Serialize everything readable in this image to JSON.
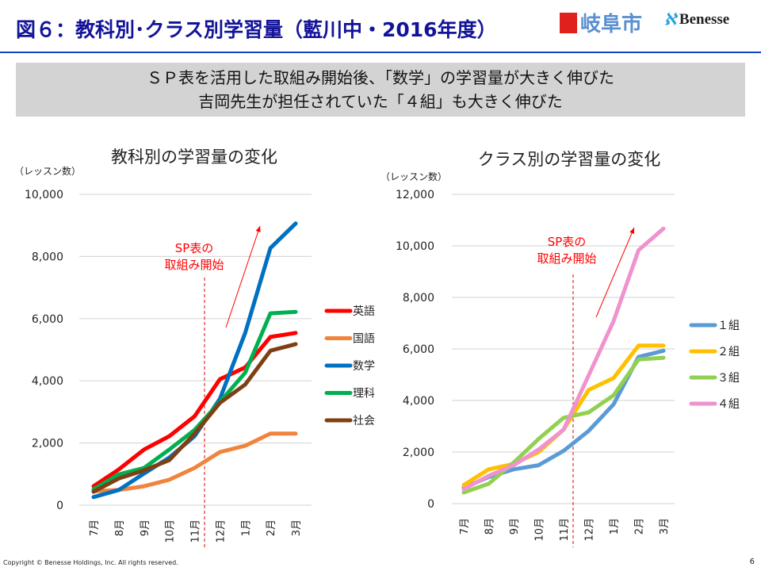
{
  "header": {
    "title": "図６：教科別･クラス別学習量（藍川中・2016年度）",
    "logo_gifu": "岐阜市",
    "logo_benesse": "Benesse"
  },
  "summary": {
    "line1": "ＳＰ表を活用した取組み開始後、「数学」の学習量が大きく伸びた",
    "line2": "吉岡先生が担任されていた「４組」も大きく伸びた"
  },
  "footer": {
    "copyright": "Copyright © Benesse Holdings, Inc. All rights reserved.",
    "page_number": "6"
  },
  "chart_data": [
    {
      "type": "line",
      "title": "教科別の学習量の変化",
      "ylabel": "（レッスン数）",
      "categories": [
        "7月",
        "8月",
        "9月",
        "10月",
        "11月",
        "12月",
        "1月",
        "2月",
        "3月"
      ],
      "ylim": [
        0,
        10000
      ],
      "yticks": [
        0,
        2000,
        4000,
        6000,
        8000,
        10000
      ],
      "ytick_labels": [
        "0",
        "2,000",
        "4,000",
        "6,000",
        "8,000",
        "10,000"
      ],
      "grid": true,
      "legend": "right",
      "annotation": {
        "line1": "SP表の",
        "line2": "取組み開始",
        "at_between": [
          "11月",
          "12月"
        ],
        "color": "#ff0000"
      },
      "series": [
        {
          "name": "英語",
          "color": "#ff0000",
          "values": [
            610,
            1150,
            1790,
            2220,
            2860,
            4050,
            4430,
            5410,
            5540
          ]
        },
        {
          "name": "国語",
          "color": "#f0843c",
          "values": [
            450,
            490,
            610,
            820,
            1200,
            1710,
            1910,
            2300,
            2300
          ]
        },
        {
          "name": "数学",
          "color": "#0070c0",
          "values": [
            260,
            490,
            1020,
            1530,
            2220,
            3420,
            5540,
            8270,
            9060
          ]
        },
        {
          "name": "理科",
          "color": "#00b050",
          "values": [
            510,
            990,
            1200,
            1790,
            2420,
            3320,
            4260,
            6170,
            6220
          ]
        },
        {
          "name": "社会",
          "color": "#7f3f13",
          "values": [
            430,
            860,
            1120,
            1450,
            2300,
            3290,
            3880,
            4970,
            5180
          ]
        }
      ]
    },
    {
      "type": "line",
      "title": "クラス別の学習量の変化",
      "ylabel": "（レッスン数）",
      "categories": [
        "7月",
        "8月",
        "9月",
        "10月",
        "11月",
        "12月",
        "1月",
        "2月",
        "3月"
      ],
      "ylim": [
        0,
        12000
      ],
      "yticks": [
        0,
        2000,
        4000,
        6000,
        8000,
        10000,
        12000
      ],
      "ytick_labels": [
        "0",
        "2,000",
        "4,000",
        "6,000",
        "8,000",
        "10,000",
        "12,000"
      ],
      "grid": true,
      "legend": "right",
      "annotation": {
        "line1": "SP表の",
        "line2": "取組み開始",
        "at_between": [
          "11月",
          "12月"
        ],
        "color": "#ff0000"
      },
      "series": [
        {
          "name": "１組",
          "color": "#5b9bd5",
          "values": [
            615,
            1030,
            1330,
            1490,
            2050,
            2820,
            3850,
            5690,
            5930
          ]
        },
        {
          "name": "２組",
          "color": "#ffc000",
          "values": [
            720,
            1330,
            1540,
            2000,
            2870,
            4410,
            4870,
            6130,
            6130
          ]
        },
        {
          "name": "３組",
          "color": "#92d050",
          "values": [
            430,
            770,
            1590,
            2510,
            3330,
            3540,
            4200,
            5590,
            5660
          ]
        },
        {
          "name": "４組",
          "color": "#ee93cf",
          "values": [
            560,
            1080,
            1490,
            2100,
            2870,
            4970,
            7080,
            9830,
            10670
          ]
        }
      ]
    }
  ]
}
